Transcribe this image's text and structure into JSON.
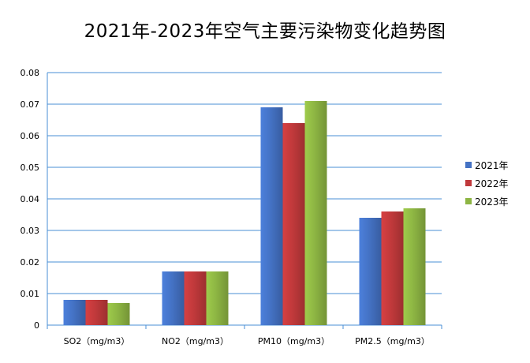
{
  "chart_data": {
    "type": "bar",
    "title": "2021年-2023年空气主要污染物变化趋势图",
    "categories": [
      "SO2（mg/m3）",
      "NO2（mg/m3）",
      "PM10（mg/m3）",
      "PM2.5（mg/m3）"
    ],
    "series": [
      {
        "name": "2021年",
        "color": "#4472C4",
        "values": [
          0.008,
          0.017,
          0.069,
          0.034
        ]
      },
      {
        "name": "2022年",
        "color": "#C0393B",
        "values": [
          0.008,
          0.017,
          0.064,
          0.036
        ]
      },
      {
        "name": "2023年",
        "color": "#8DB543",
        "values": [
          0.007,
          0.017,
          0.071,
          0.037
        ]
      }
    ],
    "ylim": [
      0,
      0.08
    ],
    "yticks": [
      "0",
      "0.01",
      "0.02",
      "0.03",
      "0.04",
      "0.05",
      "0.06",
      "0.07",
      "0.08"
    ],
    "grid": true,
    "legend_position": "right"
  }
}
